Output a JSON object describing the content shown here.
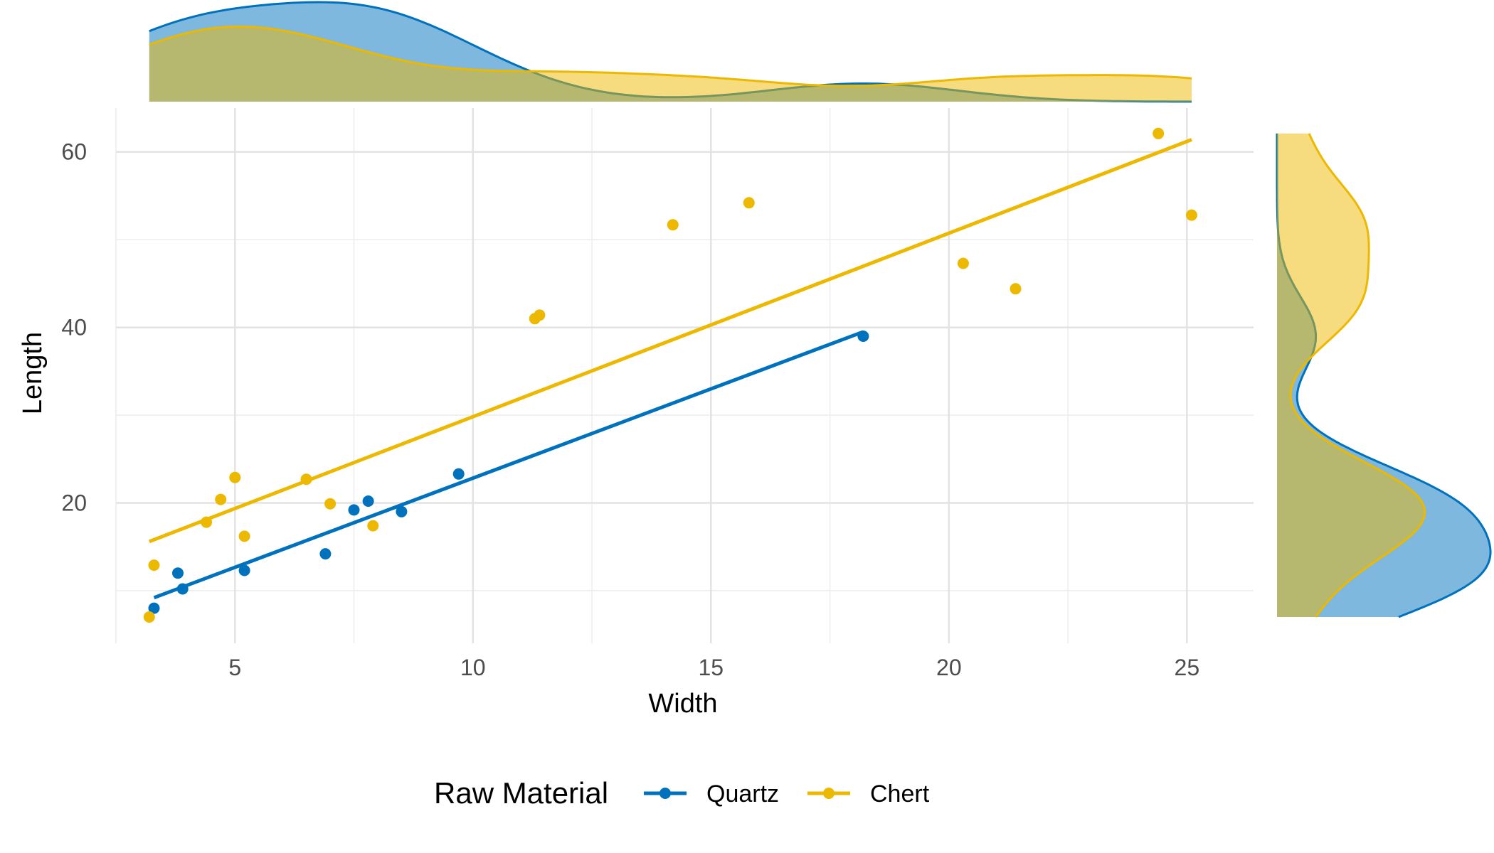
{
  "chart_data": {
    "type": "scatter",
    "title": "",
    "xlabel": "Width",
    "ylabel": "Length",
    "xlim": [
      2.5,
      26.4
    ],
    "ylim": [
      4,
      65
    ],
    "x_ticks": [
      "5",
      "10",
      "15",
      "20",
      "25"
    ],
    "y_ticks": [
      "20",
      "40",
      "60"
    ],
    "grid": true,
    "legend": {
      "title": "Raw Material",
      "position": "bottom",
      "entries": [
        "Quartz",
        "Chert"
      ]
    },
    "marginal_density": {
      "top": "Width",
      "right": "Length"
    },
    "series": [
      {
        "name": "Quartz",
        "color": "#0072BD",
        "points": [
          {
            "x": 3.3,
            "y": 8.0
          },
          {
            "x": 3.8,
            "y": 12.0
          },
          {
            "x": 3.9,
            "y": 10.2
          },
          {
            "x": 5.2,
            "y": 12.3
          },
          {
            "x": 6.9,
            "y": 14.2
          },
          {
            "x": 7.5,
            "y": 19.2
          },
          {
            "x": 7.8,
            "y": 20.2
          },
          {
            "x": 8.5,
            "y": 19.0
          },
          {
            "x": 9.7,
            "y": 23.3
          },
          {
            "x": 18.2,
            "y": 39.0
          }
        ],
        "fit_line": {
          "x": [
            3.3,
            18.2
          ],
          "y": [
            9.2,
            39.5
          ]
        }
      },
      {
        "name": "Chert",
        "color": "#EDB800",
        "points": [
          {
            "x": 3.2,
            "y": 7.0
          },
          {
            "x": 3.3,
            "y": 12.9
          },
          {
            "x": 4.4,
            "y": 17.8
          },
          {
            "x": 4.7,
            "y": 20.4
          },
          {
            "x": 5.0,
            "y": 22.9
          },
          {
            "x": 5.2,
            "y": 16.2
          },
          {
            "x": 6.5,
            "y": 22.7
          },
          {
            "x": 7.0,
            "y": 19.9
          },
          {
            "x": 7.9,
            "y": 17.4
          },
          {
            "x": 11.3,
            "y": 41.0
          },
          {
            "x": 11.4,
            "y": 41.4
          },
          {
            "x": 14.2,
            "y": 51.7
          },
          {
            "x": 15.8,
            "y": 54.2
          },
          {
            "x": 20.3,
            "y": 47.3
          },
          {
            "x": 21.4,
            "y": 44.4
          },
          {
            "x": 24.4,
            "y": 62.1
          },
          {
            "x": 25.1,
            "y": 52.8
          }
        ],
        "fit_line": {
          "x": [
            3.2,
            25.1
          ],
          "y": [
            15.6,
            61.4
          ]
        }
      }
    ]
  }
}
